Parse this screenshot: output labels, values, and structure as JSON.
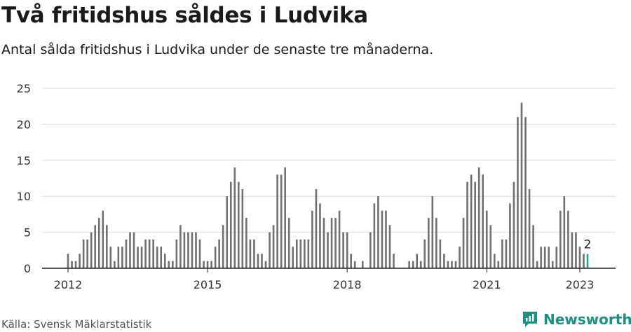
{
  "title": "Två fritidshus såldes i Ludvika",
  "subtitle": "Antal sålda fritidshus i Ludvika under de senaste tre månaderna.",
  "source": "Källa: Svensk Mäklarstatistik",
  "brand": "Newsworthy",
  "colors": {
    "bar": "#707070",
    "highlight": "#1fa89a",
    "grid": "#dcdcdc",
    "axis": "#222222",
    "brand": "#1f8f84"
  },
  "chart_data": {
    "type": "bar",
    "title": "Två fritidshus såldes i Ludvika",
    "ylim": [
      0,
      25
    ],
    "yticks": [
      0,
      5,
      10,
      15,
      20,
      25
    ],
    "xticks": [
      "2012",
      "2015",
      "2018",
      "2021",
      "2023"
    ],
    "grid": true,
    "series": [
      {
        "values": [
          2,
          1,
          1,
          2,
          4,
          4,
          5,
          6,
          7,
          8,
          6,
          3,
          1,
          3,
          3,
          4,
          5,
          5,
          3,
          3,
          4,
          4,
          4,
          3,
          3,
          2,
          1,
          1,
          4,
          6,
          5,
          5,
          5,
          5,
          4,
          1,
          1,
          1,
          3,
          4,
          6,
          10,
          12,
          14,
          12,
          11,
          7,
          4,
          4,
          2,
          2,
          1,
          5,
          6,
          13,
          13,
          14,
          7,
          3,
          4,
          4,
          4,
          4,
          8,
          11,
          9,
          7,
          5,
          7,
          7,
          8,
          5,
          5,
          2,
          1,
          0,
          1,
          0,
          5,
          9,
          10,
          8,
          8,
          6,
          2,
          0,
          0,
          0,
          1,
          1,
          2,
          1,
          4,
          7,
          10,
          7,
          4,
          2,
          1,
          1,
          1,
          3,
          7,
          12,
          13,
          12,
          14,
          13,
          8,
          6,
          2,
          1,
          4,
          4,
          9,
          12,
          21,
          23,
          21,
          11,
          6,
          1,
          3,
          3,
          3,
          1,
          3,
          8,
          10,
          8,
          5,
          5,
          3,
          2,
          2
        ]
      }
    ],
    "last_value_label": "2"
  }
}
